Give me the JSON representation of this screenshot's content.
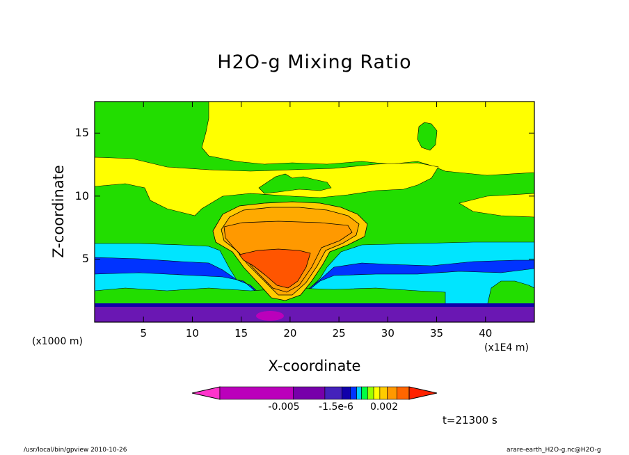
{
  "chart_data": {
    "type": "contour",
    "title": "H2O-g Mixing Ratio",
    "xlabel": "X-coordinate",
    "ylabel": "Z-coordinate",
    "x_unit_left": "(x1000 m)",
    "x_unit_right": "(x1E4 m)",
    "x_ticks": [
      5,
      10,
      15,
      20,
      25,
      30,
      35,
      40
    ],
    "y_ticks": [
      5,
      10,
      15
    ],
    "xlim": [
      0,
      45
    ],
    "ylim": [
      0,
      17.5
    ],
    "colorbar": {
      "tick_labels": [
        "-0.005",
        "-1.5e-6",
        "0.002"
      ],
      "colors": [
        "#ff33cc",
        "#bb00bb",
        "#7700aa",
        "#4422bb",
        "#1100aa",
        "#0033ff",
        "#00ccff",
        "#00ff44",
        "#99ff00",
        "#ffff00",
        "#ffcc00",
        "#ff9900",
        "#ff6600",
        "#ff2200"
      ]
    },
    "time_label": "t=21300 s",
    "colors": {
      "yellow": "#ffff00",
      "green": "#22dd00",
      "cyan": "#00e5ff",
      "blue": "#0033ff",
      "purple": "#6a17b3",
      "orange": "#ff9900",
      "light_orange": "#ffaa00",
      "red_orange": "#ff5500"
    }
  },
  "footer": {
    "left": "/usr/local/bin/gpview  2010-10-26",
    "right": "arare-earth_H2O-g.nc@H2O-g"
  }
}
